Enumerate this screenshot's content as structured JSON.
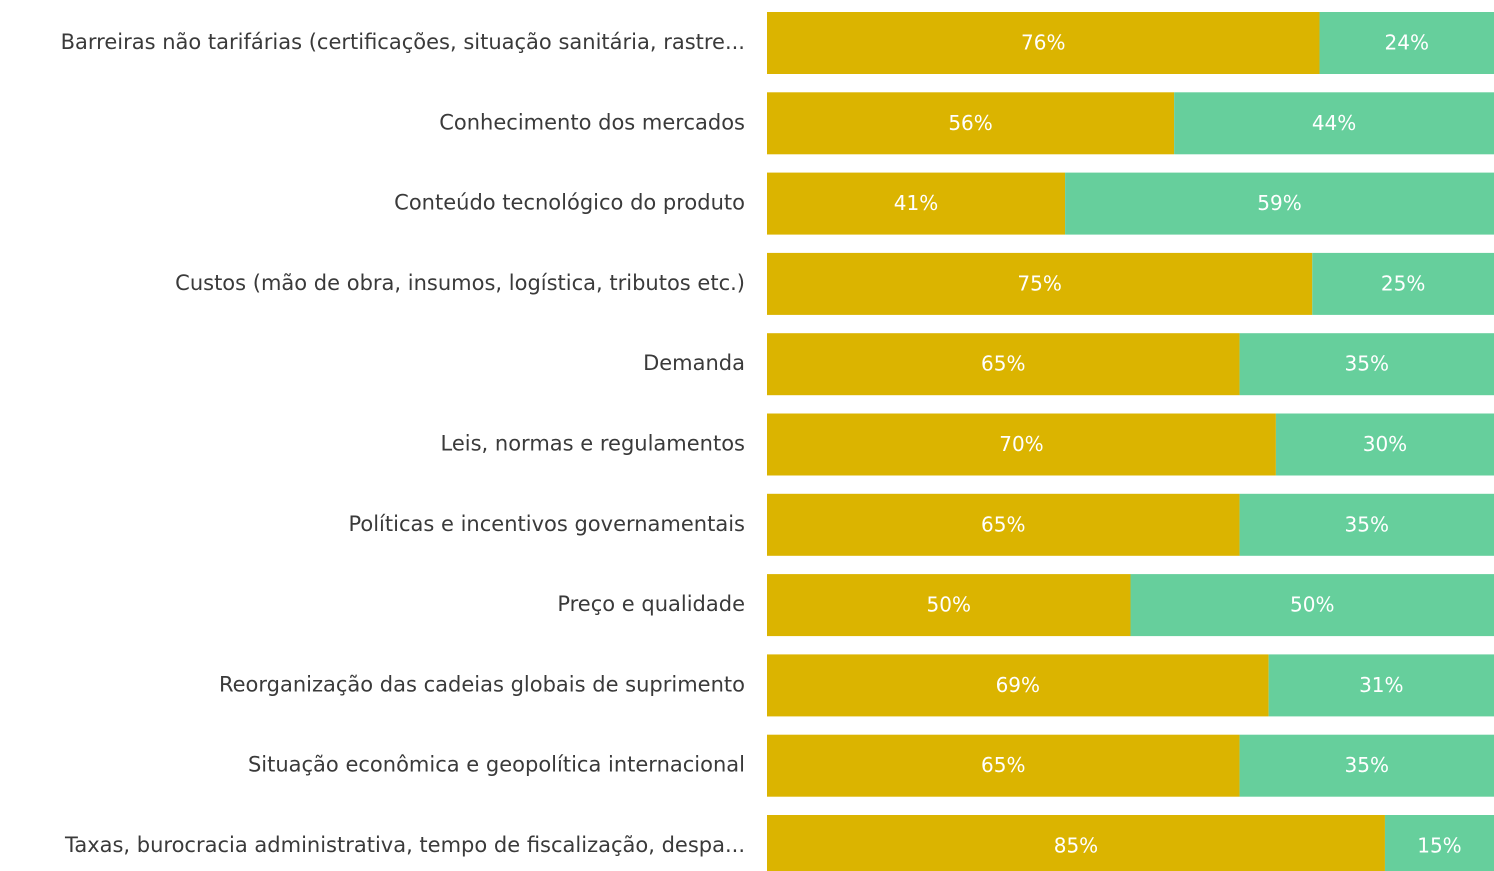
{
  "chart_data": {
    "type": "stacked_barh",
    "categories": [
      "Barreiras não tarifárias (certificações, situação sanitária, rastre...",
      "Conhecimento dos mercados",
      "Conteúdo tecnológico do produto",
      "Custos (mão de obra, insumos, logística, tributos etc.)",
      "Demanda",
      "Leis, normas e regulamentos",
      "Políticas e incentivos governamentais",
      "Preço e qualidade",
      "Reorganização das cadeias globais de suprimento",
      "Situação econômica e geopolítica internacional",
      "Taxas, burocracia administrativa, tempo de fiscalização, despa..."
    ],
    "series": [
      {
        "color": "#dbb400",
        "values": [
          76,
          56,
          41,
          75,
          65,
          70,
          65,
          50,
          69,
          65,
          85
        ],
        "value_labels": [
          "76%",
          "56%",
          "41%",
          "75%",
          "65%",
          "70%",
          "65%",
          "50%",
          "69%",
          "65%",
          "85%"
        ]
      },
      {
        "color": "#66cf9c",
        "values": [
          24,
          44,
          59,
          25,
          35,
          30,
          35,
          50,
          31,
          35,
          15
        ],
        "value_labels": [
          "24%",
          "44%",
          "59%",
          "25%",
          "35%",
          "30%",
          "35%",
          "50%",
          "31%",
          "35%",
          "15%"
        ]
      }
    ],
    "xlim": [
      0,
      100
    ]
  }
}
